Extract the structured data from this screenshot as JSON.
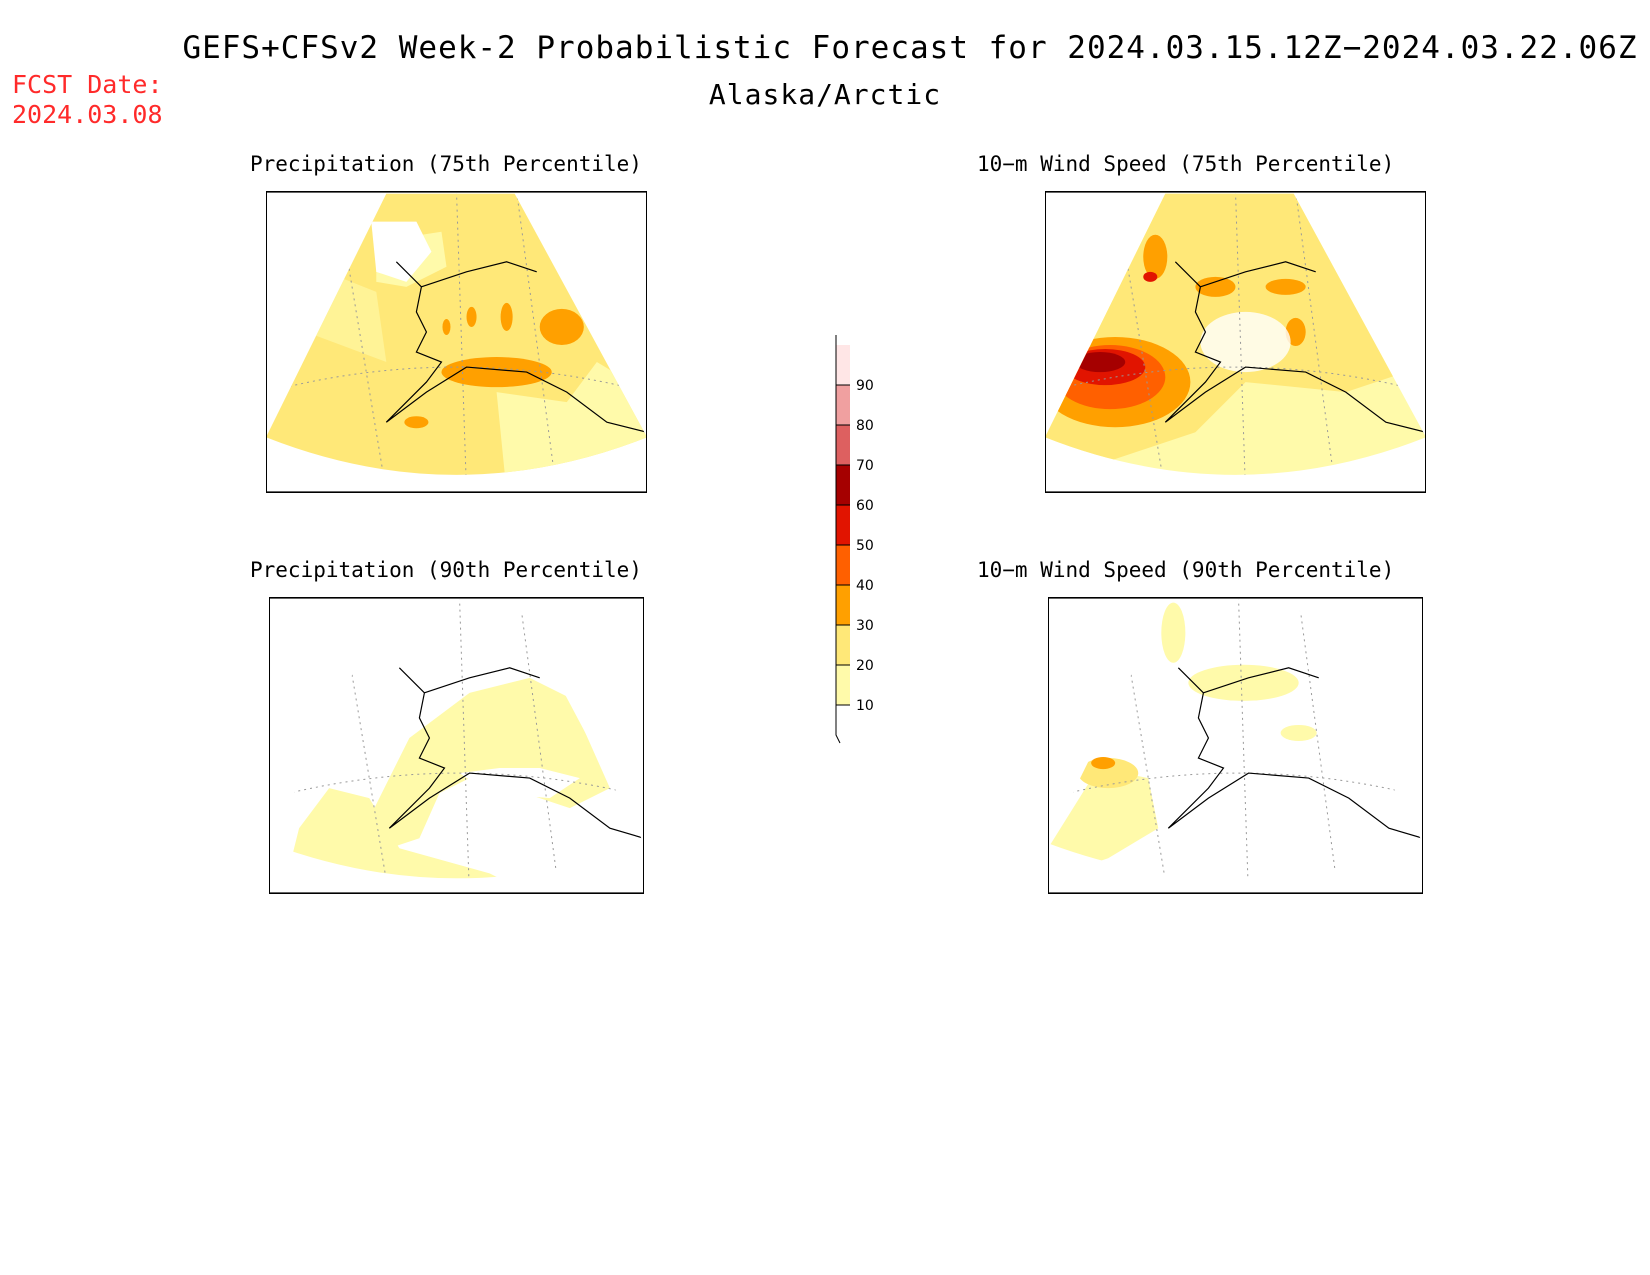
{
  "header": {
    "title": "GEFS+CFSv2 Week-2 Probabilistic Forecast for 2024.03.15.12Z−2024.03.22.06Z",
    "subtitle": "Alaska/Arctic",
    "fcst_label": "FCST Date:",
    "fcst_date": "2024.03.08"
  },
  "panels": [
    {
      "id": "precip75",
      "title": "Precipitation (75th Percentile)"
    },
    {
      "id": "wind75",
      "title": "10−m Wind Speed (75th Percentile)"
    },
    {
      "id": "precip90",
      "title": "Precipitation (90th Percentile)"
    },
    {
      "id": "wind90",
      "title": "10−m Wind Speed (90th Percentile)"
    }
  ],
  "colorbar": {
    "levels": [
      "10",
      "20",
      "30",
      "40",
      "50",
      "60",
      "70",
      "80",
      "90"
    ],
    "colors": [
      "#fffaaa",
      "#ffe878",
      "#ffa000",
      "#ff6000",
      "#e11400",
      "#a50000",
      "#dd6060",
      "#f0a0a0",
      "#ffe6e6"
    ]
  }
}
